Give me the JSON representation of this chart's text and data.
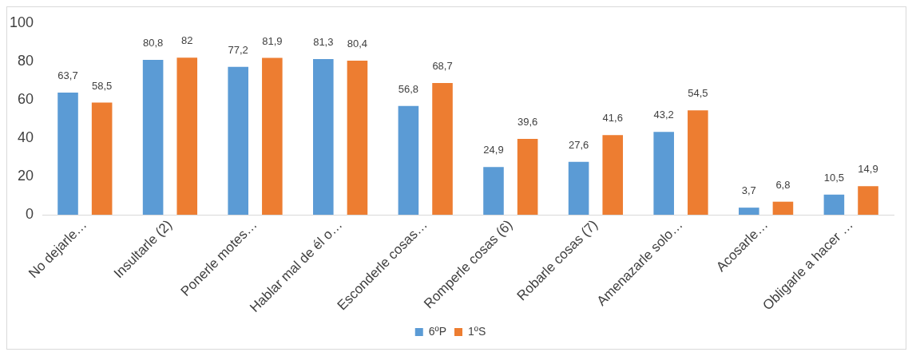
{
  "chart_data": {
    "type": "bar",
    "categories": [
      "No dejarle…",
      "Insultarle (2)",
      "Ponerle motes…",
      "Hablar mal de él o…",
      "Esconderle cosas…",
      "Romperle cosas (6)",
      "Robarle cosas (7)",
      "Amenazarle solo…",
      "Acosarle…",
      "Obligarle a hacer …"
    ],
    "series": [
      {
        "name": "6ºP",
        "color": "#5b9bd5",
        "values": [
          63.7,
          80.8,
          77.2,
          81.3,
          56.8,
          24.9,
          27.6,
          43.2,
          3.7,
          10.5
        ],
        "value_labels": [
          "63,7",
          "80,8",
          "77,2",
          "81,3",
          "56,8",
          "24,9",
          "27,6",
          "43,2",
          "3,7",
          "10,5"
        ]
      },
      {
        "name": "1ºS",
        "color": "#ed7d31",
        "values": [
          58.5,
          82,
          81.9,
          80.4,
          68.7,
          39.6,
          41.6,
          54.5,
          6.8,
          14.9
        ],
        "value_labels": [
          "58,5",
          "82",
          "81,9",
          "80,4",
          "68,7",
          "39,6",
          "41,6",
          "54,5",
          "6,8",
          "14,9"
        ]
      }
    ],
    "ylim": [
      0,
      100
    ],
    "yticks": [
      0,
      20,
      40,
      60,
      80,
      100
    ],
    "grid": false,
    "legend": "bottom"
  }
}
